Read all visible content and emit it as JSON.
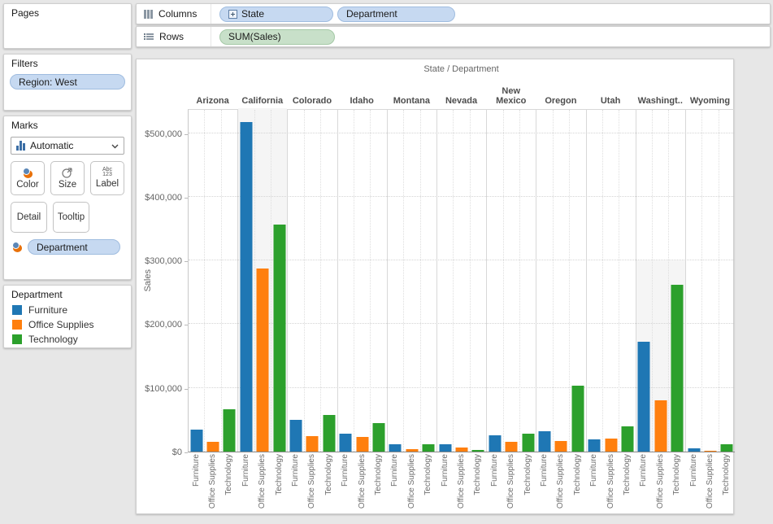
{
  "sidebar": {
    "pages": {
      "title": "Pages"
    },
    "filters": {
      "title": "Filters",
      "pills": [
        "Region: West"
      ]
    },
    "marks": {
      "title": "Marks",
      "mark_type": "Automatic",
      "buttons": [
        "Color",
        "Size",
        "Label",
        "Detail",
        "Tooltip"
      ],
      "pills": [
        "Department"
      ]
    },
    "legend": {
      "title": "Department",
      "items": [
        {
          "label": "Furniture",
          "color": "#1f77b4"
        },
        {
          "label": "Office Supplies",
          "color": "#ff7f0e"
        },
        {
          "label": "Technology",
          "color": "#2ca02c"
        }
      ]
    }
  },
  "shelves": {
    "columns_label": "Columns",
    "rows_label": "Rows",
    "columns_pills": [
      {
        "label": "State",
        "expandable": true
      },
      {
        "label": "Department",
        "expandable": false
      }
    ],
    "rows_pills": [
      {
        "label": "SUM(Sales)"
      }
    ]
  },
  "chart_data": {
    "type": "bar",
    "title": "State  /  Department",
    "ylabel": "Sales",
    "ylim": [
      0,
      539000
    ],
    "yticks": [
      0,
      100000,
      200000,
      300000,
      400000,
      500000
    ],
    "ytick_labels": [
      "$0",
      "$100,000",
      "$200,000",
      "$300,000",
      "$400,000",
      "$500,000"
    ],
    "grid": "dotted horizontal each $100k; dotted vertical between department columns",
    "legend_position": "left-sidebar card",
    "categories": [
      "Arizona",
      "California",
      "Colorado",
      "Idaho",
      "Montana",
      "Nevada",
      "New Mexico",
      "Oregon",
      "Utah",
      "Washingt..",
      "Wyoming"
    ],
    "sub_categories": [
      "Furniture",
      "Office Supplies",
      "Technology"
    ],
    "series": [
      {
        "name": "Furniture",
        "color": "#1f77b4",
        "values": [
          35000,
          517000,
          50000,
          28000,
          11000,
          12000,
          26000,
          32000,
          19000,
          172000,
          5000
        ]
      },
      {
        "name": "Office Supplies",
        "color": "#ff7f0e",
        "values": [
          15000,
          288000,
          24000,
          23000,
          4000,
          6000,
          15000,
          16000,
          21000,
          80000,
          1500
        ]
      },
      {
        "name": "Technology",
        "color": "#2ca02c",
        "values": [
          66000,
          357000,
          58000,
          45000,
          12000,
          3000,
          28000,
          103000,
          39000,
          262000,
          12000
        ]
      }
    ],
    "shaded_panes": [
      {
        "category": "California",
        "from_value": 539000
      },
      {
        "category": "Washingt..",
        "from_value": 300000
      }
    ]
  }
}
